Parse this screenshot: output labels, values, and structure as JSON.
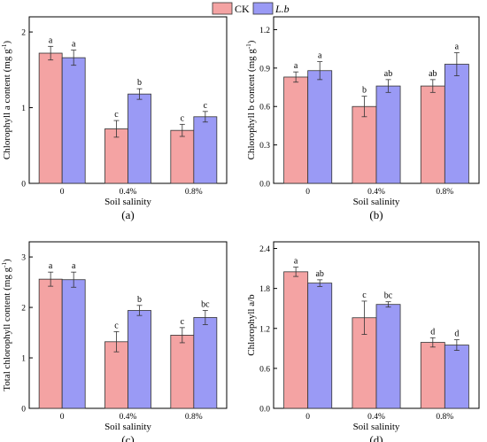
{
  "legend": {
    "items": [
      {
        "label": "CK",
        "color": "#f4a3a3",
        "italic": false
      },
      {
        "label": "L.b",
        "color": "#9a9af5",
        "italic": true
      }
    ]
  },
  "colors": {
    "ck": "#f4a3a3",
    "lb": "#9a9af5",
    "stroke": "#333333"
  },
  "chart_data": [
    {
      "type": "bar",
      "panel": "(a)",
      "xlabel": "Soil salinity",
      "ylabel": "Chlorophyll a content (mg g",
      "ylabel_sup": "-1",
      "ylabel_suffix": ")",
      "categories": [
        "0",
        "0.4%",
        "0.8%"
      ],
      "ylim": [
        0,
        2.2
      ],
      "yticks": [
        0,
        1,
        2
      ],
      "ytick_labels": [
        "0",
        "1",
        "2"
      ],
      "grid": false,
      "series": [
        {
          "name": "CK",
          "values": [
            1.72,
            0.72,
            0.7
          ],
          "errors": [
            0.09,
            0.11,
            0.08
          ],
          "labels": [
            "a",
            "c",
            "c"
          ]
        },
        {
          "name": "L.b",
          "values": [
            1.66,
            1.18,
            0.88
          ],
          "errors": [
            0.1,
            0.07,
            0.07
          ],
          "labels": [
            "a",
            "b",
            "c"
          ]
        }
      ]
    },
    {
      "type": "bar",
      "panel": "(b)",
      "xlabel": "Soil salinity",
      "ylabel": "Chlorophyll b content (mg g",
      "ylabel_sup": "-1",
      "ylabel_suffix": ")",
      "categories": [
        "0",
        "0.4%",
        "0.8%"
      ],
      "ylim": [
        0,
        1.3
      ],
      "yticks": [
        0,
        0.3,
        0.6,
        0.9,
        1.2
      ],
      "ytick_labels": [
        "0.0",
        "0.3",
        "0.6",
        "0.9",
        "1.2"
      ],
      "grid": false,
      "series": [
        {
          "name": "CK",
          "values": [
            0.83,
            0.6,
            0.76
          ],
          "errors": [
            0.04,
            0.08,
            0.05
          ],
          "labels": [
            "a",
            "b",
            "ab"
          ]
        },
        {
          "name": "L.b",
          "values": [
            0.88,
            0.76,
            0.93
          ],
          "errors": [
            0.07,
            0.05,
            0.09
          ],
          "labels": [
            "a",
            "ab",
            "a"
          ]
        }
      ]
    },
    {
      "type": "bar",
      "panel": "(c)",
      "xlabel": "Soil salinity",
      "ylabel": "Total chlorophyll content (mg g",
      "ylabel_sup": "-1",
      "ylabel_suffix": ")",
      "categories": [
        "0",
        "0.4%",
        "0.8%"
      ],
      "ylim": [
        0,
        3.3
      ],
      "yticks": [
        0,
        1,
        2,
        3
      ],
      "ytick_labels": [
        "0",
        "1",
        "2",
        "3"
      ],
      "grid": false,
      "series": [
        {
          "name": "CK",
          "values": [
            2.56,
            1.32,
            1.45
          ],
          "errors": [
            0.14,
            0.2,
            0.15
          ],
          "labels": [
            "a",
            "c",
            "c"
          ]
        },
        {
          "name": "L.b",
          "values": [
            2.55,
            1.94,
            1.8
          ],
          "errors": [
            0.15,
            0.1,
            0.14
          ],
          "labels": [
            "a",
            "b",
            "bc"
          ]
        }
      ]
    },
    {
      "type": "bar",
      "panel": "(d)",
      "xlabel": "Soil salinity",
      "ylabel": "Chlorophyll a/b",
      "ylabel_sup": "",
      "ylabel_suffix": "",
      "categories": [
        "0",
        "0.4%",
        "0.8%"
      ],
      "ylim": [
        0,
        2.5
      ],
      "yticks": [
        0,
        0.6,
        1.2,
        1.8,
        2.4
      ],
      "ytick_labels": [
        "0.0",
        "0.6",
        "1.2",
        "1.8",
        "2.4"
      ],
      "grid": false,
      "series": [
        {
          "name": "CK",
          "values": [
            2.05,
            1.36,
            0.99
          ],
          "errors": [
            0.07,
            0.25,
            0.07
          ],
          "labels": [
            "a",
            "c",
            "d"
          ]
        },
        {
          "name": "L.b",
          "values": [
            1.88,
            1.56,
            0.95
          ],
          "errors": [
            0.05,
            0.04,
            0.08
          ],
          "labels": [
            "ab",
            "bc",
            "d"
          ]
        }
      ]
    }
  ]
}
